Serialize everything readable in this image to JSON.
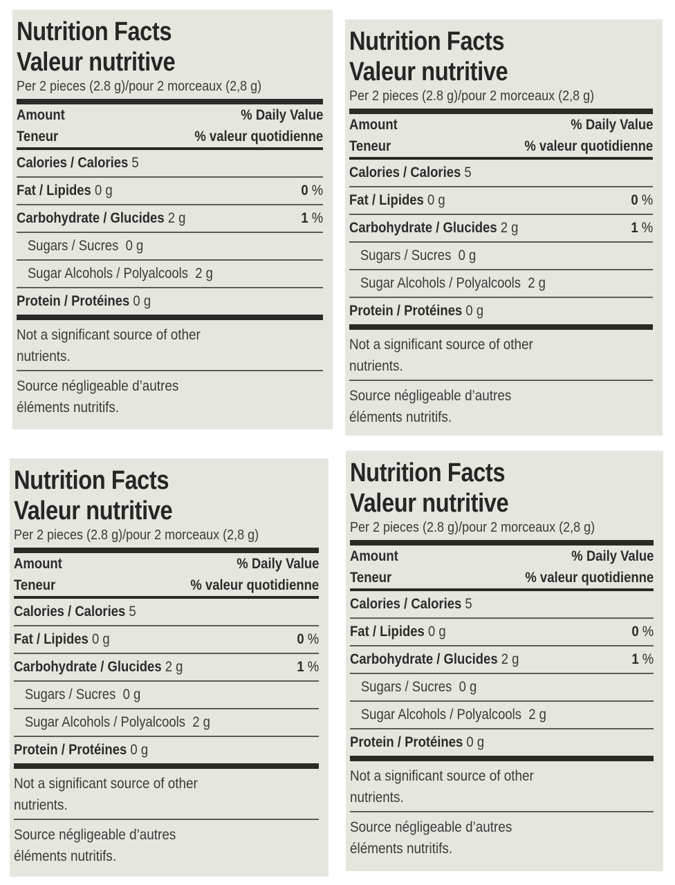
{
  "labels": [
    {
      "id": "top-left",
      "title_en": "Nutrition Facts",
      "title_fr": "Valeur nutritive",
      "serving": "Per 2 pieces (2.8 g)/pour 2 morceaux (2,8 g)",
      "header": {
        "amount_en": "Amount",
        "amount_fr": "Teneur",
        "dv_en": "% Daily Value",
        "dv_fr": "% valeur quotidienne"
      },
      "rows": {
        "calories": {
          "label": "Calories / Calories",
          "value": "5"
        },
        "fat": {
          "label": "Fat / Lipides",
          "value": "0 g",
          "pct_num": "0",
          "pct_sign": "%"
        },
        "carb": {
          "label": "Carbohydrate / Glucides",
          "value": "2 g",
          "pct_num": "1",
          "pct_sign": "%"
        },
        "sugars": {
          "label": "Sugars / Sucres",
          "value": "0 g"
        },
        "sugar_alcohols": {
          "label": "Sugar Alcohols / Polyalcools",
          "value": "2 g"
        },
        "protein": {
          "label": "Protein / Protéines",
          "value": "0 g"
        }
      },
      "note_en": [
        "Not a significant source of other",
        "nutrients."
      ],
      "note_fr": [
        "Source négligeable d’autres",
        "éléments nutritifs."
      ]
    },
    {
      "id": "top-right",
      "title_en": "Nutrition Facts",
      "title_fr": "Valeur nutritive",
      "serving": "Per 2 pieces (2.8 g)/pour 2 morceaux (2,8 g)",
      "header": {
        "amount_en": "Amount",
        "amount_fr": "Teneur",
        "dv_en": "% Daily Value",
        "dv_fr": "% valeur quotidienne"
      },
      "rows": {
        "calories": {
          "label": "Calories / Calories",
          "value": "5"
        },
        "fat": {
          "label": "Fat / Lipides",
          "value": "0 g",
          "pct_num": "0",
          "pct_sign": "%"
        },
        "carb": {
          "label": "Carbohydrate / Glucides",
          "value": "2 g",
          "pct_num": "1",
          "pct_sign": "%"
        },
        "sugars": {
          "label": "Sugars / Sucres",
          "value": "0 g"
        },
        "sugar_alcohols": {
          "label": "Sugar Alcohols / Polyalcools",
          "value": "2 g"
        },
        "protein": {
          "label": "Protein / Protéines",
          "value": "0 g"
        }
      },
      "note_en": [
        "Not a significant source of other",
        "nutrients."
      ],
      "note_fr": [
        "Source négligeable d’autres",
        "éléments nutritifs."
      ]
    },
    {
      "id": "bottom-left",
      "title_en": "Nutrition Facts",
      "title_fr": "Valeur nutritive",
      "serving": "Per 2 pieces (2.8 g)/pour 2 morceaux (2,8 g)",
      "header": {
        "amount_en": "Amount",
        "amount_fr": "Teneur",
        "dv_en": "% Daily Value",
        "dv_fr": "% valeur quotidienne"
      },
      "rows": {
        "calories": {
          "label": "Calories / Calories",
          "value": "5"
        },
        "fat": {
          "label": "Fat / Lipides",
          "value": "0 g",
          "pct_num": "0",
          "pct_sign": "%"
        },
        "carb": {
          "label": "Carbohydrate / Glucides",
          "value": "2 g",
          "pct_num": "1",
          "pct_sign": "%"
        },
        "sugars": {
          "label": "Sugars / Sucres",
          "value": "0 g"
        },
        "sugar_alcohols": {
          "label": "Sugar Alcohols / Polyalcools",
          "value": "2 g"
        },
        "protein": {
          "label": "Protein / Protéines",
          "value": "0 g"
        }
      },
      "note_en": [
        "Not a significant source of other",
        "nutrients."
      ],
      "note_fr": [
        "Source négligeable d’autres",
        "éléments nutritifs."
      ]
    },
    {
      "id": "bottom-right",
      "title_en": "Nutrition Facts",
      "title_fr": "Valeur nutritive",
      "serving": "Per 2 pieces (2.8 g)/pour 2 morceaux (2,8 g)",
      "header": {
        "amount_en": "Amount",
        "amount_fr": "Teneur",
        "dv_en": "% Daily Value",
        "dv_fr": "% valeur quotidienne"
      },
      "rows": {
        "calories": {
          "label": "Calories / Calories",
          "value": "5"
        },
        "fat": {
          "label": "Fat / Lipides",
          "value": "0 g",
          "pct_num": "0",
          "pct_sign": "%"
        },
        "carb": {
          "label": "Carbohydrate / Glucides",
          "value": "2 g",
          "pct_num": "1",
          "pct_sign": "%"
        },
        "sugars": {
          "label": "Sugars / Sucres",
          "value": "0 g"
        },
        "sugar_alcohols": {
          "label": "Sugar Alcohols / Polyalcools",
          "value": "2 g"
        },
        "protein": {
          "label": "Protein / Protéines",
          "value": "0 g"
        }
      },
      "note_en": [
        "Not a significant source of other",
        "nutrients."
      ],
      "note_fr": [
        "Source négligeable d’autres",
        "éléments nutritifs."
      ]
    }
  ],
  "colors": {
    "panel_bg": "#e5e7df",
    "ink": "#2c2c2a",
    "page_bg": "#ffffff"
  }
}
